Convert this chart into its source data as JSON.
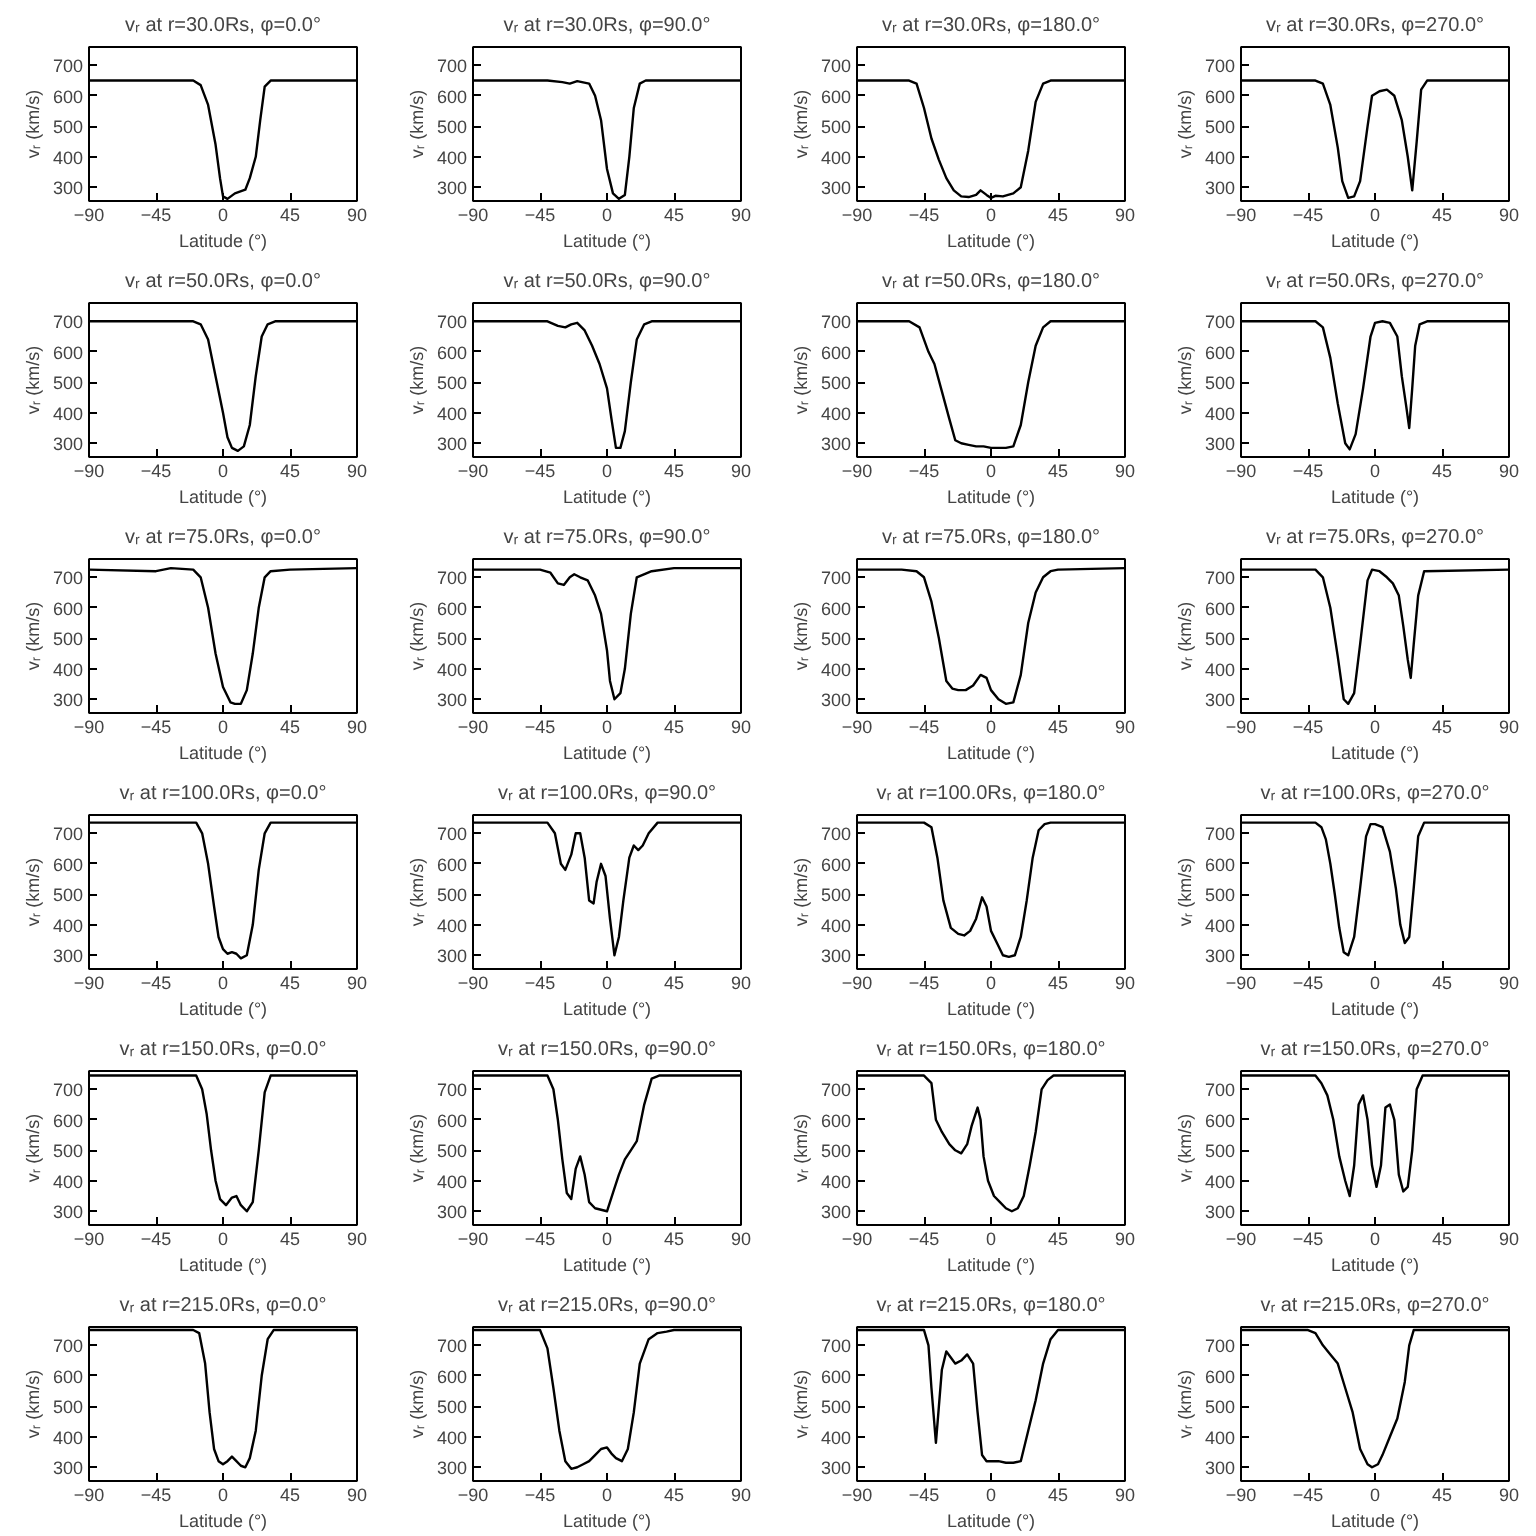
{
  "chart_data": [
    {
      "type": "line",
      "title": "vᵣ at r=30.0Rs, φ=0.0°",
      "xlabel": "Latitude (°)",
      "ylabel": "vᵣ (km/s)",
      "xlim": [
        -90,
        90
      ],
      "ylim": [
        255,
        760
      ],
      "xticks": [
        -90,
        -45,
        0,
        45,
        90
      ],
      "yticks": [
        300,
        400,
        500,
        600,
        700
      ],
      "x": [
        -90,
        -20,
        -15,
        -10,
        -5,
        -2,
        0,
        3,
        8,
        15,
        18,
        22,
        25,
        28,
        32,
        90
      ],
      "series": [
        {
          "color": "#000000",
          "values": [
            650,
            650,
            635,
            570,
            440,
            330,
            270,
            262,
            280,
            292,
            330,
            400,
            520,
            630,
            650,
            650
          ]
        }
      ]
    },
    {
      "type": "line",
      "title": "vᵣ at r=30.0Rs, φ=90.0°",
      "xlabel": "Latitude (°)",
      "ylabel": "vᵣ (km/s)",
      "xlim": [
        -90,
        90
      ],
      "ylim": [
        255,
        760
      ],
      "xticks": [
        -90,
        -45,
        0,
        45,
        90
      ],
      "yticks": [
        300,
        400,
        500,
        600,
        700
      ],
      "x": [
        -90,
        -40,
        -30,
        -25,
        -20,
        -12,
        -8,
        -4,
        0,
        4,
        8,
        12,
        15,
        18,
        22,
        26,
        90
      ],
      "series": [
        {
          "color": "#000000",
          "values": [
            650,
            650,
            645,
            640,
            648,
            640,
            600,
            520,
            360,
            280,
            262,
            275,
            400,
            560,
            640,
            650,
            650
          ]
        }
      ]
    },
    {
      "type": "line",
      "title": "vᵣ at r=30.0Rs, φ=180.0°",
      "xlabel": "Latitude (°)",
      "ylabel": "vᵣ (km/s)",
      "xlim": [
        -90,
        90
      ],
      "ylim": [
        255,
        760
      ],
      "xticks": [
        -90,
        -45,
        0,
        45,
        90
      ],
      "yticks": [
        300,
        400,
        500,
        600,
        700
      ],
      "x": [
        -90,
        -55,
        -50,
        -45,
        -40,
        -35,
        -30,
        -25,
        -20,
        -15,
        -10,
        -7,
        -3,
        0,
        3,
        8,
        15,
        20,
        25,
        30,
        35,
        40,
        90
      ],
      "series": [
        {
          "color": "#000000",
          "values": [
            650,
            650,
            640,
            560,
            460,
            390,
            330,
            290,
            270,
            268,
            275,
            290,
            275,
            265,
            272,
            270,
            280,
            300,
            420,
            580,
            640,
            650,
            650
          ]
        }
      ]
    },
    {
      "type": "line",
      "title": "vᵣ at r=30.0Rs, φ=270.0°",
      "xlabel": "Latitude (°)",
      "ylabel": "vᵣ (km/s)",
      "xlim": [
        -90,
        90
      ],
      "ylim": [
        255,
        760
      ],
      "xticks": [
        -90,
        -45,
        0,
        45,
        90
      ],
      "yticks": [
        300,
        400,
        500,
        600,
        700
      ],
      "x": [
        -90,
        -40,
        -35,
        -30,
        -25,
        -22,
        -18,
        -14,
        -10,
        -5,
        -2,
        3,
        8,
        13,
        18,
        22,
        25,
        28,
        31,
        35,
        90
      ],
      "series": [
        {
          "color": "#000000",
          "values": [
            650,
            650,
            640,
            570,
            430,
            320,
            265,
            270,
            320,
            500,
            600,
            615,
            620,
            600,
            520,
            400,
            290,
            450,
            620,
            650,
            650
          ]
        }
      ]
    },
    {
      "type": "line",
      "title": "vᵣ at r=50.0Rs, φ=0.0°",
      "xlabel": "Latitude (°)",
      "ylabel": "vᵣ (km/s)",
      "xlim": [
        -90,
        90
      ],
      "ylim": [
        255,
        760
      ],
      "xticks": [
        -90,
        -45,
        0,
        45,
        90
      ],
      "yticks": [
        300,
        400,
        500,
        600,
        700
      ],
      "x": [
        -90,
        -20,
        -15,
        -10,
        -5,
        0,
        3,
        6,
        10,
        14,
        18,
        22,
        26,
        30,
        35,
        90
      ],
      "series": [
        {
          "color": "#000000",
          "values": [
            700,
            700,
            690,
            640,
            520,
            400,
            320,
            285,
            275,
            290,
            360,
            520,
            650,
            690,
            700,
            700
          ]
        }
      ]
    },
    {
      "type": "line",
      "title": "vᵣ at r=50.0Rs, φ=90.0°",
      "xlabel": "Latitude (°)",
      "ylabel": "vᵣ (km/s)",
      "xlim": [
        -90,
        90
      ],
      "ylim": [
        255,
        760
      ],
      "xticks": [
        -90,
        -45,
        0,
        45,
        90
      ],
      "yticks": [
        300,
        400,
        500,
        600,
        700
      ],
      "x": [
        -90,
        -40,
        -33,
        -28,
        -24,
        -20,
        -15,
        -10,
        -5,
        0,
        3,
        6,
        9,
        12,
        16,
        20,
        25,
        30,
        90
      ],
      "series": [
        {
          "color": "#000000",
          "values": [
            700,
            700,
            685,
            680,
            690,
            695,
            670,
            620,
            560,
            480,
            380,
            285,
            285,
            340,
            500,
            640,
            690,
            700,
            700
          ]
        }
      ]
    },
    {
      "type": "line",
      "title": "vᵣ at r=50.0Rs, φ=180.0°",
      "xlabel": "Latitude (°)",
      "ylabel": "vᵣ (km/s)",
      "xlim": [
        -90,
        90
      ],
      "ylim": [
        255,
        760
      ],
      "xticks": [
        -90,
        -45,
        0,
        45,
        90
      ],
      "yticks": [
        300,
        400,
        500,
        600,
        700
      ],
      "x": [
        -90,
        -55,
        -48,
        -42,
        -38,
        -33,
        -28,
        -24,
        -20,
        -15,
        -10,
        -5,
        0,
        5,
        10,
        15,
        20,
        25,
        30,
        35,
        40,
        45,
        90
      ],
      "series": [
        {
          "color": "#000000",
          "values": [
            700,
            700,
            680,
            600,
            560,
            470,
            380,
            310,
            300,
            295,
            290,
            290,
            285,
            285,
            285,
            290,
            360,
            500,
            620,
            680,
            700,
            700,
            700
          ]
        }
      ]
    },
    {
      "type": "line",
      "title": "vᵣ at r=50.0Rs, φ=270.0°",
      "xlabel": "Latitude (°)",
      "ylabel": "vᵣ (km/s)",
      "xlim": [
        -90,
        90
      ],
      "ylim": [
        255,
        760
      ],
      "xticks": [
        -90,
        -45,
        0,
        45,
        90
      ],
      "yticks": [
        300,
        400,
        500,
        600,
        700
      ],
      "x": [
        -90,
        -40,
        -35,
        -30,
        -25,
        -20,
        -17,
        -13,
        -8,
        -3,
        0,
        5,
        10,
        15,
        18,
        21,
        23,
        25,
        27,
        30,
        35,
        90
      ],
      "series": [
        {
          "color": "#000000",
          "values": [
            700,
            700,
            680,
            580,
            430,
            300,
            280,
            330,
            480,
            650,
            695,
            700,
            695,
            650,
            520,
            420,
            350,
            480,
            620,
            690,
            700,
            700
          ]
        }
      ]
    },
    {
      "type": "line",
      "title": "vᵣ at r=75.0Rs, φ=0.0°",
      "xlabel": "Latitude (°)",
      "ylabel": "vᵣ (km/s)",
      "xlim": [
        -90,
        90
      ],
      "ylim": [
        255,
        760
      ],
      "xticks": [
        -90,
        -45,
        0,
        45,
        90
      ],
      "yticks": [
        300,
        400,
        500,
        600,
        700
      ],
      "x": [
        -90,
        -45,
        -35,
        -20,
        -15,
        -10,
        -5,
        0,
        5,
        8,
        12,
        16,
        20,
        24,
        28,
        32,
        45,
        90
      ],
      "series": [
        {
          "color": "#000000",
          "values": [
            725,
            720,
            730,
            725,
            700,
            600,
            450,
            340,
            290,
            285,
            285,
            330,
            450,
            600,
            700,
            720,
            725,
            730
          ]
        }
      ]
    },
    {
      "type": "line",
      "title": "vᵣ at r=75.0Rs, φ=90.0°",
      "xlabel": "Latitude (°)",
      "ylabel": "vᵣ (km/s)",
      "xlim": [
        -90,
        90
      ],
      "ylim": [
        255,
        760
      ],
      "xticks": [
        -90,
        -45,
        0,
        45,
        90
      ],
      "yticks": [
        300,
        400,
        500,
        600,
        700
      ],
      "x": [
        -90,
        -45,
        -38,
        -33,
        -29,
        -25,
        -22,
        -18,
        -13,
        -8,
        -4,
        0,
        2,
        5,
        9,
        12,
        16,
        20,
        30,
        45,
        90
      ],
      "series": [
        {
          "color": "#000000",
          "values": [
            725,
            725,
            715,
            680,
            675,
            700,
            710,
            700,
            690,
            640,
            580,
            460,
            360,
            300,
            320,
            400,
            580,
            700,
            720,
            730,
            730
          ]
        }
      ]
    },
    {
      "type": "line",
      "title": "vᵣ at r=75.0Rs, φ=180.0°",
      "xlabel": "Latitude (°)",
      "ylabel": "vᵣ (km/s)",
      "xlim": [
        -90,
        90
      ],
      "ylim": [
        255,
        760
      ],
      "xticks": [
        -90,
        -45,
        0,
        45,
        90
      ],
      "yticks": [
        300,
        400,
        500,
        600,
        700
      ],
      "x": [
        -90,
        -60,
        -50,
        -45,
        -40,
        -35,
        -30,
        -26,
        -22,
        -17,
        -12,
        -7,
        -3,
        0,
        5,
        10,
        15,
        20,
        25,
        30,
        35,
        40,
        45,
        90
      ],
      "series": [
        {
          "color": "#000000",
          "values": [
            725,
            725,
            720,
            700,
            620,
            500,
            360,
            335,
            330,
            330,
            345,
            380,
            370,
            330,
            300,
            285,
            290,
            380,
            550,
            650,
            700,
            720,
            725,
            730
          ]
        }
      ]
    },
    {
      "type": "line",
      "title": "vᵣ at r=75.0Rs, φ=270.0°",
      "xlabel": "Latitude (°)",
      "ylabel": "vᵣ (km/s)",
      "xlim": [
        -90,
        90
      ],
      "ylim": [
        255,
        760
      ],
      "xticks": [
        -90,
        -45,
        0,
        45,
        90
      ],
      "yticks": [
        300,
        400,
        500,
        600,
        700
      ],
      "x": [
        -90,
        -40,
        -35,
        -30,
        -25,
        -21,
        -18,
        -14,
        -10,
        -5,
        -2,
        3,
        8,
        12,
        16,
        19,
        22,
        24,
        26,
        29,
        33,
        90
      ],
      "series": [
        {
          "color": "#000000",
          "values": [
            725,
            725,
            700,
            600,
            440,
            300,
            285,
            320,
            480,
            690,
            725,
            720,
            700,
            680,
            640,
            540,
            430,
            370,
            480,
            640,
            720,
            725
          ]
        }
      ]
    },
    {
      "type": "line",
      "title": "vᵣ at r=100.0Rs, φ=0.0°",
      "xlabel": "Latitude (°)",
      "ylabel": "vᵣ (km/s)",
      "xlim": [
        -90,
        90
      ],
      "ylim": [
        255,
        760
      ],
      "xticks": [
        -90,
        -45,
        0,
        45,
        90
      ],
      "yticks": [
        300,
        400,
        500,
        600,
        700
      ],
      "x": [
        -90,
        -18,
        -14,
        -10,
        -6,
        -3,
        0,
        3,
        6,
        9,
        12,
        16,
        20,
        24,
        28,
        32,
        90
      ],
      "series": [
        {
          "color": "#000000",
          "values": [
            735,
            735,
            700,
            600,
            460,
            360,
            320,
            305,
            310,
            305,
            290,
            300,
            400,
            580,
            700,
            735,
            735
          ]
        }
      ]
    },
    {
      "type": "line",
      "title": "vᵣ at r=100.0Rs, φ=90.0°",
      "xlabel": "Latitude (°)",
      "ylabel": "vᵣ (km/s)",
      "xlim": [
        -90,
        90
      ],
      "ylim": [
        255,
        760
      ],
      "xticks": [
        -90,
        -45,
        0,
        45,
        90
      ],
      "yticks": [
        300,
        400,
        500,
        600,
        700
      ],
      "x": [
        -90,
        -40,
        -35,
        -31,
        -28,
        -24,
        -21,
        -18,
        -15,
        -12,
        -9,
        -7,
        -4,
        -1,
        2,
        5,
        8,
        11,
        15,
        18,
        21,
        24,
        28,
        34,
        90
      ],
      "series": [
        {
          "color": "#000000",
          "values": [
            735,
            735,
            700,
            600,
            580,
            630,
            700,
            700,
            620,
            480,
            470,
            540,
            600,
            560,
            420,
            300,
            360,
            480,
            620,
            660,
            645,
            660,
            700,
            735,
            735
          ]
        }
      ]
    },
    {
      "type": "line",
      "title": "vᵣ at r=100.0Rs, φ=180.0°",
      "xlabel": "Latitude (°)",
      "ylabel": "vᵣ (km/s)",
      "xlim": [
        -90,
        90
      ],
      "ylim": [
        255,
        760
      ],
      "xticks": [
        -90,
        -45,
        0,
        45,
        90
      ],
      "yticks": [
        300,
        400,
        500,
        600,
        700
      ],
      "x": [
        -90,
        -45,
        -40,
        -36,
        -32,
        -27,
        -22,
        -18,
        -14,
        -10,
        -6,
        -3,
        0,
        4,
        8,
        12,
        16,
        20,
        24,
        28,
        32,
        36,
        40,
        90
      ],
      "series": [
        {
          "color": "#000000",
          "values": [
            735,
            735,
            720,
            620,
            480,
            390,
            370,
            365,
            380,
            420,
            490,
            460,
            380,
            340,
            300,
            295,
            300,
            360,
            480,
            620,
            710,
            730,
            735,
            735
          ]
        }
      ]
    },
    {
      "type": "line",
      "title": "vᵣ at r=100.0Rs, φ=270.0°",
      "xlabel": "Latitude (°)",
      "ylabel": "vᵣ (km/s)",
      "xlim": [
        -90,
        90
      ],
      "ylim": [
        255,
        760
      ],
      "xticks": [
        -90,
        -45,
        0,
        45,
        90
      ],
      "yticks": [
        300,
        400,
        500,
        600,
        700
      ],
      "x": [
        -90,
        -40,
        -36,
        -33,
        -30,
        -27,
        -24,
        -21,
        -18,
        -14,
        -10,
        -6,
        -3,
        0,
        5,
        10,
        14,
        17,
        20,
        23,
        26,
        29,
        33,
        90
      ],
      "series": [
        {
          "color": "#000000",
          "values": [
            735,
            735,
            720,
            680,
            600,
            500,
            390,
            310,
            300,
            360,
            520,
            690,
            730,
            730,
            720,
            640,
            520,
            400,
            340,
            360,
            520,
            690,
            735,
            735
          ]
        }
      ]
    },
    {
      "type": "line",
      "title": "vᵣ at r=150.0Rs, φ=0.0°",
      "xlabel": "Latitude (°)",
      "ylabel": "vᵣ (km/s)",
      "xlim": [
        -90,
        90
      ],
      "ylim": [
        255,
        760
      ],
      "xticks": [
        -90,
        -45,
        0,
        45,
        90
      ],
      "yticks": [
        300,
        400,
        500,
        600,
        700
      ],
      "x": [
        -90,
        -18,
        -14,
        -11,
        -8,
        -5,
        -2,
        2,
        6,
        9,
        12,
        16,
        20,
        24,
        28,
        32,
        90
      ],
      "series": [
        {
          "color": "#000000",
          "values": [
            745,
            745,
            700,
            620,
            500,
            400,
            340,
            320,
            345,
            350,
            320,
            300,
            330,
            500,
            690,
            745,
            745
          ]
        }
      ]
    },
    {
      "type": "line",
      "title": "vᵣ at r=150.0Rs, φ=90.0°",
      "xlabel": "Latitude (°)",
      "ylabel": "vᵣ (km/s)",
      "xlim": [
        -90,
        90
      ],
      "ylim": [
        255,
        760
      ],
      "xticks": [
        -90,
        -45,
        0,
        45,
        90
      ],
      "yticks": [
        300,
        400,
        500,
        600,
        700
      ],
      "x": [
        -90,
        -40,
        -36,
        -33,
        -30,
        -27,
        -24,
        -21,
        -18,
        -15,
        -12,
        -8,
        -4,
        0,
        4,
        8,
        12,
        16,
        20,
        25,
        30,
        35,
        90
      ],
      "series": [
        {
          "color": "#000000",
          "values": [
            745,
            745,
            700,
            600,
            470,
            360,
            340,
            440,
            480,
            420,
            330,
            310,
            305,
            300,
            360,
            420,
            470,
            500,
            530,
            650,
            735,
            745,
            745
          ]
        }
      ]
    },
    {
      "type": "line",
      "title": "vᵣ at r=150.0Rs, φ=180.0°",
      "xlabel": "Latitude (°)",
      "ylabel": "vᵣ (km/s)",
      "xlim": [
        -90,
        90
      ],
      "ylim": [
        255,
        760
      ],
      "xticks": [
        -90,
        -45,
        0,
        45,
        90
      ],
      "yticks": [
        300,
        400,
        500,
        600,
        700
      ],
      "x": [
        -90,
        -45,
        -40,
        -37,
        -33,
        -28,
        -24,
        -20,
        -16,
        -13,
        -9,
        -7,
        -5,
        -2,
        2,
        6,
        10,
        14,
        18,
        22,
        26,
        30,
        34,
        38,
        42,
        90
      ],
      "series": [
        {
          "color": "#000000",
          "values": [
            745,
            745,
            720,
            600,
            560,
            520,
            500,
            490,
            520,
            580,
            640,
            600,
            480,
            400,
            350,
            330,
            310,
            300,
            310,
            350,
            450,
            560,
            700,
            730,
            745,
            745
          ]
        }
      ]
    },
    {
      "type": "line",
      "title": "vᵣ at r=150.0Rs, φ=270.0°",
      "xlabel": "Latitude (°)",
      "ylabel": "vᵣ (km/s)",
      "xlim": [
        -90,
        90
      ],
      "ylim": [
        255,
        760
      ],
      "xticks": [
        -90,
        -45,
        0,
        45,
        90
      ],
      "yticks": [
        300,
        400,
        500,
        600,
        700
      ],
      "x": [
        -90,
        -40,
        -36,
        -32,
        -28,
        -24,
        -20,
        -17,
        -14,
        -11,
        -8,
        -5,
        -2,
        1,
        4,
        7,
        10,
        13,
        16,
        19,
        22,
        25,
        28,
        32,
        90
      ],
      "series": [
        {
          "color": "#000000",
          "values": [
            745,
            745,
            720,
            680,
            600,
            480,
            400,
            350,
            450,
            650,
            680,
            600,
            450,
            380,
            450,
            640,
            650,
            600,
            420,
            365,
            380,
            500,
            700,
            745,
            745
          ]
        }
      ]
    },
    {
      "type": "line",
      "title": "vᵣ at r=215.0Rs, φ=0.0°",
      "xlabel": "Latitude (°)",
      "ylabel": "vᵣ (km/s)",
      "xlim": [
        -90,
        90
      ],
      "ylim": [
        255,
        760
      ],
      "xticks": [
        -90,
        -45,
        0,
        45,
        90
      ],
      "yticks": [
        300,
        400,
        500,
        600,
        700
      ],
      "x": [
        -90,
        -20,
        -16,
        -12,
        -9,
        -6,
        -3,
        0,
        3,
        6,
        9,
        12,
        15,
        18,
        22,
        26,
        30,
        34,
        90
      ],
      "series": [
        {
          "color": "#000000",
          "values": [
            750,
            750,
            740,
            640,
            480,
            360,
            320,
            310,
            320,
            335,
            320,
            305,
            300,
            330,
            420,
            600,
            720,
            750,
            750
          ]
        }
      ]
    },
    {
      "type": "line",
      "title": "vᵣ at r=215.0Rs, φ=90.0°",
      "xlabel": "Latitude (°)",
      "ylabel": "vᵣ (km/s)",
      "xlim": [
        -90,
        90
      ],
      "ylim": [
        255,
        760
      ],
      "xticks": [
        -90,
        -45,
        0,
        45,
        90
      ],
      "yticks": [
        300,
        400,
        500,
        600,
        700
      ],
      "x": [
        -90,
        -45,
        -40,
        -36,
        -32,
        -28,
        -24,
        -20,
        -16,
        -12,
        -8,
        -4,
        0,
        3,
        6,
        10,
        14,
        18,
        22,
        28,
        34,
        40,
        45,
        90
      ],
      "series": [
        {
          "color": "#000000",
          "values": [
            750,
            750,
            690,
            560,
            420,
            320,
            295,
            300,
            310,
            320,
            340,
            360,
            365,
            345,
            330,
            320,
            360,
            480,
            640,
            720,
            740,
            745,
            750,
            750
          ]
        }
      ]
    },
    {
      "type": "line",
      "title": "vᵣ at r=215.0Rs, φ=180.0°",
      "xlabel": "Latitude (°)",
      "ylabel": "vᵣ (km/s)",
      "xlim": [
        -90,
        90
      ],
      "ylim": [
        255,
        760
      ],
      "xticks": [
        -90,
        -45,
        0,
        45,
        90
      ],
      "yticks": [
        300,
        400,
        500,
        600,
        700
      ],
      "x": [
        -90,
        -45,
        -42,
        -40,
        -37,
        -35,
        -33,
        -30,
        -27,
        -24,
        -20,
        -16,
        -12,
        -9,
        -6,
        -3,
        0,
        5,
        10,
        15,
        20,
        25,
        30,
        35,
        40,
        45,
        90
      ],
      "series": [
        {
          "color": "#000000",
          "values": [
            750,
            750,
            700,
            560,
            380,
            500,
            620,
            680,
            660,
            640,
            650,
            670,
            640,
            480,
            340,
            320,
            320,
            320,
            315,
            315,
            320,
            420,
            520,
            640,
            720,
            750,
            750
          ]
        }
      ]
    },
    {
      "type": "line",
      "title": "vᵣ at r=215.0Rs, φ=270.0°",
      "xlabel": "Latitude (°)",
      "ylabel": "vᵣ (km/s)",
      "xlim": [
        -90,
        90
      ],
      "ylim": [
        255,
        760
      ],
      "xticks": [
        -90,
        -45,
        0,
        45,
        90
      ],
      "yticks": [
        300,
        400,
        500,
        600,
        700
      ],
      "x": [
        -90,
        -45,
        -40,
        -35,
        -30,
        -25,
        -20,
        -15,
        -10,
        -5,
        -2,
        2,
        5,
        10,
        15,
        20,
        23,
        26,
        30,
        90
      ],
      "series": [
        {
          "color": "#000000",
          "values": [
            750,
            750,
            740,
            700,
            670,
            640,
            560,
            480,
            360,
            310,
            300,
            310,
            340,
            400,
            460,
            580,
            700,
            750,
            750,
            750
          ]
        }
      ]
    }
  ]
}
